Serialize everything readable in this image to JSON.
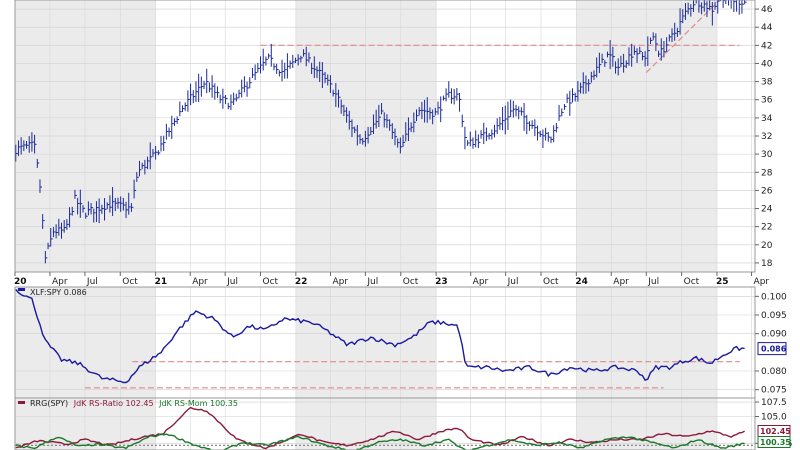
{
  "chart_data": [
    {
      "type": "line",
      "panel": "price",
      "style": "bars",
      "ylim": [
        17,
        47
      ],
      "yticks": [
        "18",
        "20",
        "22",
        "24",
        "26",
        "28",
        "30",
        "32",
        "34",
        "36",
        "38",
        "40",
        "42",
        "44",
        "46"
      ],
      "ytick_values": [
        18,
        20,
        22,
        24,
        26,
        28,
        30,
        32,
        34,
        36,
        38,
        40,
        42,
        44,
        46
      ],
      "xlim": [
        "2020-01-01",
        "2025-04-10"
      ],
      "xticks": [
        {
          "label": "20",
          "date": "2020-01-01",
          "year": true
        },
        {
          "label": "Apr",
          "date": "2020-04-01"
        },
        {
          "label": "Jul",
          "date": "2020-07-01"
        },
        {
          "label": "Oct",
          "date": "2020-10-01"
        },
        {
          "label": "21",
          "date": "2021-01-01",
          "year": true
        },
        {
          "label": "Apr",
          "date": "2021-04-01"
        },
        {
          "label": "Jul",
          "date": "2021-07-01"
        },
        {
          "label": "Oct",
          "date": "2021-10-01"
        },
        {
          "label": "22",
          "date": "2022-01-01",
          "year": true
        },
        {
          "label": "Apr",
          "date": "2022-04-01"
        },
        {
          "label": "Jul",
          "date": "2022-07-01"
        },
        {
          "label": "Oct",
          "date": "2022-10-01"
        },
        {
          "label": "23",
          "date": "2023-01-01",
          "year": true
        },
        {
          "label": "Apr",
          "date": "2023-04-01"
        },
        {
          "label": "Jul",
          "date": "2023-07-01"
        },
        {
          "label": "Oct",
          "date": "2023-10-01"
        },
        {
          "label": "24",
          "date": "2024-01-01",
          "year": true
        },
        {
          "label": "Apr",
          "date": "2024-04-01"
        },
        {
          "label": "Jul",
          "date": "2024-07-01"
        },
        {
          "label": "Oct",
          "date": "2024-10-01"
        },
        {
          "label": "25",
          "date": "2025-01-01",
          "year": true
        },
        {
          "label": "Apr",
          "date": "2025-04-01"
        }
      ],
      "shaded_years": [
        [
          "2020-01-01",
          "2021-01-01"
        ],
        [
          "2022-01-01",
          "2023-01-01"
        ],
        [
          "2024-01-01",
          "2025-01-01"
        ]
      ],
      "anchors": [
        [
          "2020-01-01",
          30.5
        ],
        [
          "2020-02-20",
          31.0
        ],
        [
          "2020-03-05",
          27.0
        ],
        [
          "2020-03-20",
          18.5
        ],
        [
          "2020-04-10",
          21.5
        ],
        [
          "2020-05-10",
          21.5
        ],
        [
          "2020-06-05",
          25.0
        ],
        [
          "2020-07-01",
          23.5
        ],
        [
          "2020-09-01",
          24.5
        ],
        [
          "2020-10-30",
          24.0
        ],
        [
          "2020-11-15",
          28.0
        ],
        [
          "2021-01-01",
          30.0
        ],
        [
          "2021-03-10",
          35.0
        ],
        [
          "2021-05-10",
          38.0
        ],
        [
          "2021-06-20",
          36.0
        ],
        [
          "2021-07-20",
          35.5
        ],
        [
          "2021-09-01",
          38.0
        ],
        [
          "2021-10-20",
          40.5
        ],
        [
          "2021-11-30",
          39.0
        ],
        [
          "2022-01-15",
          41.0
        ],
        [
          "2022-02-20",
          39.5
        ],
        [
          "2022-04-10",
          37.0
        ],
        [
          "2022-05-20",
          33.5
        ],
        [
          "2022-06-20",
          31.5
        ],
        [
          "2022-08-15",
          34.5
        ],
        [
          "2022-09-30",
          30.5
        ],
        [
          "2022-11-15",
          35.0
        ],
        [
          "2022-12-31",
          34.5
        ],
        [
          "2023-02-01",
          36.5
        ],
        [
          "2023-03-01",
          36.5
        ],
        [
          "2023-03-20",
          31.0
        ],
        [
          "2023-05-05",
          32.0
        ],
        [
          "2023-06-10",
          33.0
        ],
        [
          "2023-07-20",
          35.0
        ],
        [
          "2023-08-20",
          34.0
        ],
        [
          "2023-10-25",
          31.5
        ],
        [
          "2023-11-30",
          35.5
        ],
        [
          "2024-01-01",
          36.5
        ],
        [
          "2024-03-25",
          41.0
        ],
        [
          "2024-04-20",
          39.5
        ],
        [
          "2024-06-01",
          41.5
        ],
        [
          "2024-06-25",
          40.5
        ],
        [
          "2024-07-20",
          43.0
        ],
        [
          "2024-08-05",
          41.0
        ],
        [
          "2024-09-15",
          43.5
        ],
        [
          "2024-10-10",
          45.5
        ],
        [
          "2024-11-06",
          47.0
        ],
        [
          "2024-12-20",
          46.0
        ],
        [
          "2025-01-10",
          47.5
        ],
        [
          "2025-02-10",
          47.0
        ],
        [
          "2025-03-15",
          46.8
        ]
      ],
      "annotations": [
        {
          "kind": "hline",
          "y": 42,
          "x": [
            "2021-10-01",
            "2025-03-01"
          ],
          "color": "#e08a8a"
        },
        {
          "kind": "hline",
          "y": 47,
          "x": [
            "2024-10-10",
            "2025-03-20"
          ],
          "color": "#e08a8a"
        },
        {
          "kind": "trend",
          "from": [
            "2024-07-01",
            39
          ],
          "to": [
            "2025-01-20",
            47.5
          ],
          "color": "#e08a8a"
        }
      ]
    },
    {
      "type": "line",
      "panel": "ratio",
      "legend": "XLF:SPY 0.086",
      "ylim": [
        0.0725,
        0.1025
      ],
      "yticks": [
        "0.100",
        "0.095",
        "0.090",
        "0.080",
        "0.075"
      ],
      "ytick_values": [
        0.1,
        0.095,
        0.09,
        0.08,
        0.075
      ],
      "last_value": "0.086",
      "anchors": [
        [
          "2020-01-01",
          0.102
        ],
        [
          "2020-02-15",
          0.099
        ],
        [
          "2020-03-20",
          0.088
        ],
        [
          "2020-05-01",
          0.083
        ],
        [
          "2020-06-15",
          0.082
        ],
        [
          "2020-08-15",
          0.078
        ],
        [
          "2020-10-15",
          0.077
        ],
        [
          "2020-11-20",
          0.081
        ],
        [
          "2021-01-15",
          0.085
        ],
        [
          "2021-03-01",
          0.091
        ],
        [
          "2021-04-15",
          0.096
        ],
        [
          "2021-06-01",
          0.094
        ],
        [
          "2021-07-20",
          0.089
        ],
        [
          "2021-09-01",
          0.092
        ],
        [
          "2021-10-15",
          0.091
        ],
        [
          "2021-11-30",
          0.094
        ],
        [
          "2022-02-10",
          0.093
        ],
        [
          "2022-03-20",
          0.091
        ],
        [
          "2022-05-15",
          0.087
        ],
        [
          "2022-07-15",
          0.089
        ],
        [
          "2022-09-15",
          0.087
        ],
        [
          "2022-11-01",
          0.089
        ],
        [
          "2022-12-15",
          0.093
        ],
        [
          "2023-01-15",
          0.093
        ],
        [
          "2023-02-28",
          0.092
        ],
        [
          "2023-03-20",
          0.081
        ],
        [
          "2023-05-15",
          0.081
        ],
        [
          "2023-07-01",
          0.08
        ],
        [
          "2023-09-01",
          0.081
        ],
        [
          "2023-10-25",
          0.079
        ],
        [
          "2023-12-15",
          0.081
        ],
        [
          "2024-02-15",
          0.08
        ],
        [
          "2024-04-15",
          0.081
        ],
        [
          "2024-06-10",
          0.08
        ],
        [
          "2024-07-01",
          0.0775
        ],
        [
          "2024-07-25",
          0.081
        ],
        [
          "2024-09-01",
          0.081
        ],
        [
          "2024-10-01",
          0.0825
        ],
        [
          "2024-11-08",
          0.0835
        ],
        [
          "2024-12-15",
          0.082
        ],
        [
          "2025-01-20",
          0.0845
        ],
        [
          "2025-02-20",
          0.086
        ],
        [
          "2025-03-15",
          0.086
        ]
      ],
      "annotations": [
        {
          "kind": "hline",
          "y": 0.0825,
          "x": [
            "2020-11-01",
            "2025-03-01"
          ],
          "color": "#e08a8a"
        },
        {
          "kind": "hline",
          "y": 0.0755,
          "x": [
            "2020-07-01",
            "2024-08-15"
          ],
          "color": "#e08a8a"
        }
      ]
    },
    {
      "type": "line",
      "panel": "rrg",
      "legend_title": "RRG(SPY)",
      "ylim": [
        99.2,
        108.2
      ],
      "yticks": [
        "107.5",
        "105.0",
        "100.35"
      ],
      "ytick_values": [
        107.5,
        105.0,
        100.35
      ],
      "series": [
        {
          "name": "JdK RS-Ratio 102.45",
          "color": "#8b1a3a",
          "last_value": "102.45",
          "anchors": [
            [
              "2020-01-01",
              99.5
            ],
            [
              "2020-03-01",
              100.8
            ],
            [
              "2020-05-15",
              100.2
            ],
            [
              "2020-07-01",
              101.0
            ],
            [
              "2020-09-01",
              100.0
            ],
            [
              "2020-12-01",
              101.5
            ],
            [
              "2021-01-20",
              102.0
            ],
            [
              "2021-04-01",
              106.5
            ],
            [
              "2021-05-15",
              106.0
            ],
            [
              "2021-08-01",
              101.0
            ],
            [
              "2021-10-15",
              99.5
            ],
            [
              "2022-01-15",
              102.0
            ],
            [
              "2022-03-15",
              100.5
            ],
            [
              "2022-05-15",
              100.0
            ],
            [
              "2022-07-15",
              101.0
            ],
            [
              "2022-09-20",
              102.5
            ],
            [
              "2022-11-15",
              101.0
            ],
            [
              "2023-01-15",
              102.5
            ],
            [
              "2023-03-01",
              103.0
            ],
            [
              "2023-04-01",
              101.0
            ],
            [
              "2023-06-15",
              100.0
            ],
            [
              "2023-08-15",
              101.5
            ],
            [
              "2023-10-20",
              100.0
            ],
            [
              "2023-12-15",
              101.0
            ],
            [
              "2024-02-15",
              100.5
            ],
            [
              "2024-04-15",
              101.0
            ],
            [
              "2024-06-15",
              101.0
            ],
            [
              "2024-08-15",
              102.0
            ],
            [
              "2024-10-15",
              101.5
            ],
            [
              "2024-12-15",
              102.5
            ],
            [
              "2025-02-10",
              101.5
            ],
            [
              "2025-03-15",
              102.45
            ]
          ]
        },
        {
          "name": "JdK RS-Mom 100.35",
          "color": "#1a7a2a",
          "last_value": "100.35",
          "anchors": [
            [
              "2020-01-01",
              100.0
            ],
            [
              "2020-02-20",
              99.5
            ],
            [
              "2020-04-20",
              101.5
            ],
            [
              "2020-06-15",
              99.8
            ],
            [
              "2020-08-01",
              100.2
            ],
            [
              "2020-10-15",
              99.5
            ],
            [
              "2020-12-15",
              101.5
            ],
            [
              "2021-02-01",
              102.0
            ],
            [
              "2021-04-15",
              100.0
            ],
            [
              "2021-06-15",
              98.8
            ],
            [
              "2021-08-15",
              100.5
            ],
            [
              "2021-10-15",
              100.0
            ],
            [
              "2022-01-10",
              101.5
            ],
            [
              "2022-03-20",
              100.0
            ],
            [
              "2022-06-01",
              99.0
            ],
            [
              "2022-08-01",
              100.5
            ],
            [
              "2022-10-01",
              101.0
            ],
            [
              "2022-12-01",
              100.0
            ],
            [
              "2023-02-01",
              101.0
            ],
            [
              "2023-03-20",
              99.0
            ],
            [
              "2023-05-15",
              100.0
            ],
            [
              "2023-07-15",
              101.0
            ],
            [
              "2023-09-15",
              100.0
            ],
            [
              "2023-11-15",
              100.5
            ],
            [
              "2024-01-15",
              99.5
            ],
            [
              "2024-03-15",
              101.0
            ],
            [
              "2024-05-15",
              101.5
            ],
            [
              "2024-07-15",
              100.5
            ],
            [
              "2024-09-15",
              99.5
            ],
            [
              "2024-11-10",
              101.0
            ],
            [
              "2025-01-15",
              99.5
            ],
            [
              "2025-03-15",
              100.35
            ]
          ]
        }
      ],
      "annotations": [
        {
          "kind": "hline",
          "y": 100.0,
          "x": [
            "2020-01-01",
            "2025-04-10"
          ],
          "color": "#888888"
        }
      ]
    }
  ]
}
